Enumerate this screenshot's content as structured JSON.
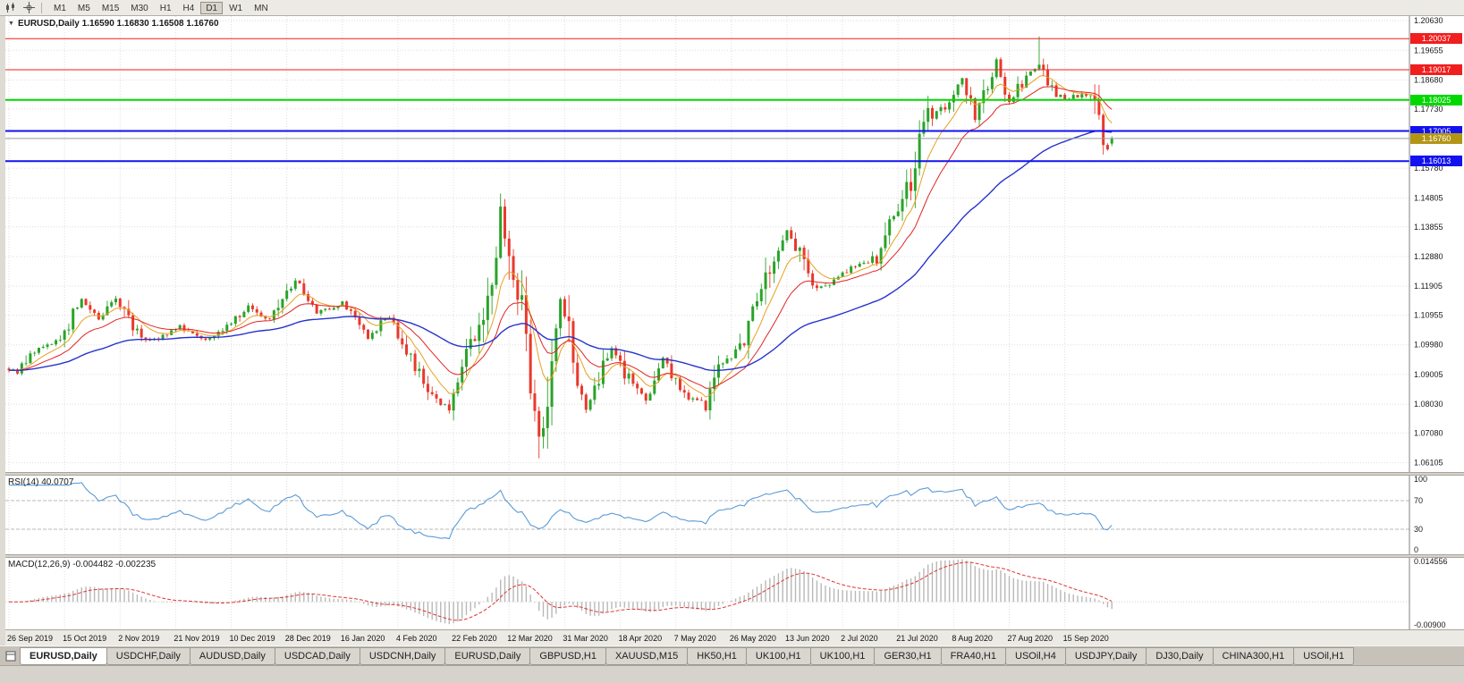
{
  "toolbar": {
    "timeframes": [
      {
        "label": "M1",
        "active": false
      },
      {
        "label": "M5",
        "active": false
      },
      {
        "label": "M15",
        "active": false
      },
      {
        "label": "M30",
        "active": false
      },
      {
        "label": "H1",
        "active": false
      },
      {
        "label": "H4",
        "active": false
      },
      {
        "label": "D1",
        "active": true
      },
      {
        "label": "W1",
        "active": false
      },
      {
        "label": "MN",
        "active": false
      }
    ]
  },
  "icons": {
    "one_click_arrow": "▼",
    "toolbar_icons": [
      "candlestick-chart-icon",
      "crosshair-icon"
    ],
    "tab_list_icon": "chart-windows-icon"
  },
  "chart": {
    "title_line": "EURUSD,Daily 1.16590 1.16830 1.16508 1.16760"
  },
  "rsi_panel": {
    "label": "RSI(14)",
    "value": "40.0707"
  },
  "macd_panel": {
    "label": "MACD(12,26,9)",
    "values": "-0.004482 -0.002235"
  },
  "tabs": {
    "items": [
      {
        "label": "EURUSD,Daily",
        "active": true
      },
      {
        "label": "USDCHF,Daily",
        "active": false
      },
      {
        "label": "AUDUSD,Daily",
        "active": false
      },
      {
        "label": "USDCAD,Daily",
        "active": false
      },
      {
        "label": "USDCNH,Daily",
        "active": false
      },
      {
        "label": "EURUSD,Daily",
        "active": false
      },
      {
        "label": "GBPUSD,H1",
        "active": false
      },
      {
        "label": "XAUUSD,M15",
        "active": false
      },
      {
        "label": "HK50,H1",
        "active": false
      },
      {
        "label": "UK100,H1",
        "active": false
      },
      {
        "label": "UK100,H1",
        "active": false
      },
      {
        "label": "GER30,H1",
        "active": false
      },
      {
        "label": "FRA40,H1",
        "active": false
      },
      {
        "label": "USOil,H4",
        "active": false
      },
      {
        "label": "USDJPY,Daily",
        "active": false
      },
      {
        "label": "DJ30,Daily",
        "active": false
      },
      {
        "label": "CHINA300,H1",
        "active": false
      },
      {
        "label": "USOil,H1",
        "active": false
      }
    ]
  },
  "chart_data": {
    "type": "candlestick",
    "symbol": "EURUSD",
    "timeframe": "Daily",
    "last_ohlc": {
      "open": "1.16590",
      "high": "1.16830",
      "low": "1.16508",
      "close": "1.16760"
    },
    "price_axis": {
      "max": 1.2078,
      "min": 1.058,
      "ticks": [
        "1.20630",
        "1.19655",
        "1.18680",
        "1.17730",
        "1.16755",
        "1.15780",
        "1.14805",
        "1.13855",
        "1.12880",
        "1.11905",
        "1.10955",
        "1.09980",
        "1.09005",
        "1.08030",
        "1.07080",
        "1.06105"
      ]
    },
    "date_labels": [
      "26 Sep 2019",
      "15 Oct 2019",
      "2 Nov 2019",
      "21 Nov 2019",
      "10 Dec 2019",
      "28 Dec 2019",
      "16 Jan 2020",
      "4 Feb 2020",
      "22 Feb 2020",
      "12 Mar 2020",
      "31 Mar 2020",
      "18 Apr 2020",
      "7 May 2020",
      "26 May 2020",
      "13 Jun 2020",
      "2 Jul 2020",
      "21 Jul 2020",
      "8 Aug 2020",
      "27 Aug 2020",
      "15 Sep 2020"
    ],
    "candle_count": 259,
    "candle_up_color": "#29a329",
    "candle_down_color": "#e8392c",
    "price_anchors": [
      [
        0,
        1.092
      ],
      [
        2,
        1.09
      ],
      [
        3,
        1.0932
      ],
      [
        6,
        1.0979
      ],
      [
        10,
        1.1
      ],
      [
        13,
        1.1035
      ],
      [
        17,
        1.115
      ],
      [
        21,
        1.108
      ],
      [
        25,
        1.1152
      ],
      [
        31,
        1.1018
      ],
      [
        35,
        1.1021
      ],
      [
        40,
        1.1058
      ],
      [
        46,
        1.1018
      ],
      [
        51,
        1.106
      ],
      [
        56,
        1.1121
      ],
      [
        61,
        1.1078
      ],
      [
        67,
        1.1213
      ],
      [
        72,
        1.1103
      ],
      [
        78,
        1.1136
      ],
      [
        84,
        1.1024
      ],
      [
        89,
        1.1094
      ],
      [
        94,
        1.0945
      ],
      [
        99,
        1.0831
      ],
      [
        103,
        1.0786
      ],
      [
        109,
        1.1026
      ],
      [
        114,
        1.1284
      ],
      [
        115,
        1.1446
      ],
      [
        118,
        1.1184
      ],
      [
        120,
        1.118
      ],
      [
        122,
        1.0915
      ],
      [
        124,
        1.0694
      ],
      [
        125,
        1.0724
      ],
      [
        129,
        1.1141
      ],
      [
        131,
        1.1031
      ],
      [
        135,
        1.0791
      ],
      [
        141,
        1.098
      ],
      [
        146,
        1.0858
      ],
      [
        149,
        1.082
      ],
      [
        153,
        1.0955
      ],
      [
        158,
        1.0834
      ],
      [
        163,
        1.0805
      ],
      [
        165,
        1.0917
      ],
      [
        171,
        1.0982
      ],
      [
        175,
        1.1134
      ],
      [
        179,
        1.1292
      ],
      [
        182,
        1.1375
      ],
      [
        189,
        1.1177
      ],
      [
        194,
        1.1219
      ],
      [
        197,
        1.1251
      ],
      [
        203,
        1.1284
      ],
      [
        206,
        1.1398
      ],
      [
        211,
        1.1526
      ],
      [
        215,
        1.1752
      ],
      [
        219,
        1.1778
      ],
      [
        223,
        1.1878
      ],
      [
        226,
        1.174
      ],
      [
        231,
        1.1932
      ],
      [
        234,
        1.1797
      ],
      [
        239,
        1.1903
      ],
      [
        241,
        1.1911
      ],
      [
        244,
        1.184
      ],
      [
        247,
        1.1801
      ],
      [
        249,
        1.1814
      ],
      [
        252,
        1.1816
      ],
      [
        254,
        1.1772
      ],
      [
        256,
        1.1667
      ],
      [
        257,
        1.1631
      ],
      [
        258,
        1.1676
      ]
    ],
    "overrides": {
      "115": {
        "h": 1.1495
      },
      "124": {
        "l": 1.0625
      },
      "241": {
        "h": 1.2011
      },
      "258": {
        "o": 1.1659,
        "h": 1.1683,
        "l": 1.16508,
        "c": 1.1676
      }
    },
    "moving_averages": [
      {
        "name": "fast-ma",
        "period": 8,
        "color": "#e8a020",
        "width": 1
      },
      {
        "name": "mid-ma",
        "period": 18,
        "color": "#e02424",
        "width": 1
      },
      {
        "name": "slow-ma",
        "period": 55,
        "color": "#2733cc",
        "width": 1.4
      }
    ],
    "levels": [
      {
        "price": 1.20037,
        "label": "1.20037",
        "color": "#f01e1e",
        "width": 1
      },
      {
        "price": 1.19017,
        "label": "1.19017",
        "color": "#f01e1e",
        "width": 1
      },
      {
        "price": 1.18025,
        "label": "1.18025",
        "color": "#00d800",
        "width": 2
      },
      {
        "price": 1.17005,
        "label": "1.17005",
        "color": "#1212f0",
        "width": 2
      },
      {
        "price": 1.16013,
        "label": "1.16013",
        "color": "#1212f0",
        "width": 2
      }
    ],
    "current_price": {
      "price": 1.1676,
      "label": "1.16760",
      "tag_color": "#b39516"
    },
    "indicators": {
      "rsi": {
        "period": 14,
        "current": "40.0707",
        "overbought": 70,
        "oversold": 30,
        "color": "#5b9bd5",
        "axis_ticks": [
          "100",
          "70",
          "30",
          "0"
        ]
      },
      "macd": {
        "fast": 12,
        "slow": 26,
        "signal": 9,
        "current": "-0.004482 -0.002235",
        "hist_color": "#b8b8b8",
        "signal_color": "#e03434",
        "axis_max": 0.0152,
        "axis_min": -0.0095,
        "axis_ticks": [
          "0.014556",
          "-0.00900"
        ]
      }
    }
  }
}
